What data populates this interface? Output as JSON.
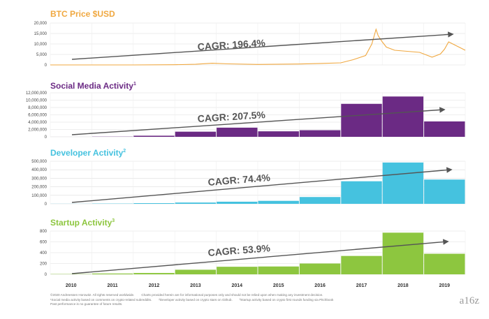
{
  "years": [
    "2010",
    "2011",
    "2012",
    "2013",
    "2014",
    "2015",
    "2016",
    "2017",
    "2018",
    "2019"
  ],
  "colors": {
    "btc": "#F0A840",
    "social": "#6B2A84",
    "developer": "#45C2DF",
    "startup": "#8DC63F",
    "arrow": "#555555",
    "grid": "#DDDDDD"
  },
  "chart_data": [
    {
      "type": "line",
      "title": "BTC Price $USD",
      "footnote_mark": "",
      "yticks": [
        "20,000",
        "15,000",
        "10,000",
        "5,000",
        "0"
      ],
      "ylim": [
        0,
        20000
      ],
      "cagr_label": "CAGR: 196.4%",
      "x": [
        2010.0,
        2011.0,
        2012.0,
        2013.0,
        2013.5,
        2013.9,
        2014.3,
        2015.0,
        2016.0,
        2016.5,
        2017.0,
        2017.3,
        2017.6,
        2017.75,
        2017.85,
        2017.9,
        2018.0,
        2018.1,
        2018.3,
        2018.6,
        2018.9,
        2019.2,
        2019.4,
        2019.5,
        2019.6,
        2019.7,
        2019.8,
        2019.9,
        2020.0
      ],
      "values": [
        0,
        5,
        10,
        100,
        300,
        800,
        500,
        250,
        450,
        700,
        1000,
        2500,
        4500,
        10000,
        17000,
        14000,
        11000,
        8500,
        7000,
        6500,
        6000,
        3700,
        5200,
        7500,
        11000,
        10000,
        9000,
        8000,
        7000
      ]
    },
    {
      "type": "bar",
      "title": "Social Media Activity",
      "footnote_mark": "1",
      "yticks": [
        "12,000,000",
        "10,000,000",
        "8,000,000",
        "6,000,000",
        "4,000,000",
        "2,000,000",
        "0"
      ],
      "ylim": [
        0,
        12000000
      ],
      "cagr_label": "CAGR: 207.5%",
      "values": [
        5000,
        50000,
        300000,
        1400000,
        2500000,
        1500000,
        1800000,
        9000000,
        11000000,
        4200000
      ]
    },
    {
      "type": "bar",
      "title": "Developer Activity",
      "footnote_mark": "2",
      "yticks": [
        "500,000",
        "400,000",
        "300,000",
        "200,000",
        "100,000",
        "0"
      ],
      "ylim": [
        0,
        500000
      ],
      "cagr_label": "CAGR: 74.4%",
      "values": [
        1000,
        3000,
        8000,
        15000,
        25000,
        35000,
        80000,
        265000,
        485000,
        285000
      ]
    },
    {
      "type": "bar",
      "title": "Startup Activity",
      "footnote_mark": "3",
      "yticks": [
        "800",
        "600",
        "400",
        "200",
        "0"
      ],
      "ylim": [
        0,
        800
      ],
      "cagr_label": "CAGR: 53.9%",
      "values": [
        5,
        15,
        25,
        85,
        140,
        145,
        200,
        340,
        770,
        380
      ]
    }
  ],
  "footnotes": {
    "line1": "©2020 Andreessen Horowitz. All rights reserved worldwide.",
    "line1b": "Charts provided herein are for informational purposes only and should not be relied upon when making any investment decision.",
    "note1": "¹Social media activity based on comments on crypto-related subreddits.",
    "note2": "²Developer activity based on crypto stars on Github.",
    "note3": "³Startup activity based on crypto first rounds funding via Pitchbook",
    "line3": "Past performance is no guarantee of future results."
  },
  "logo": "a16z"
}
